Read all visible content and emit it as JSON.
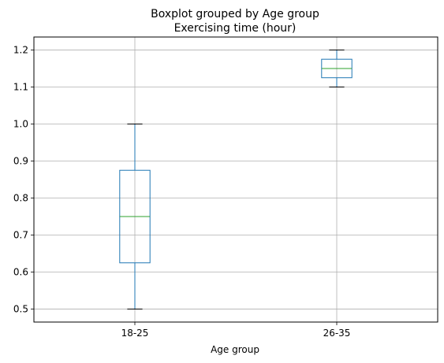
{
  "chart_data": {
    "type": "boxplot",
    "suptitle": "Boxplot grouped by Age group",
    "title": "Exercising time (hour)",
    "xlabel": "Age group",
    "ylabel": "",
    "categories": [
      "18-25",
      "26-35"
    ],
    "boxes": [
      {
        "category": "18-25",
        "whisker_low": 0.5,
        "q1": 0.625,
        "median": 0.75,
        "q3": 0.875,
        "whisker_high": 1.0
      },
      {
        "category": "26-35",
        "whisker_low": 1.1,
        "q1": 1.125,
        "median": 1.15,
        "q3": 1.175,
        "whisker_high": 1.2
      }
    ],
    "ylim": [
      0.465,
      1.235
    ],
    "yticks": [
      "0.5",
      "0.6",
      "0.7",
      "0.8",
      "0.9",
      "1.0",
      "1.1",
      "1.2"
    ],
    "grid": true,
    "colors": {
      "box": "#1f77b4",
      "median": "#2ca02c",
      "whisker": "#1f77b4",
      "cap": "#000000",
      "grid": "#b0b0b0"
    }
  }
}
